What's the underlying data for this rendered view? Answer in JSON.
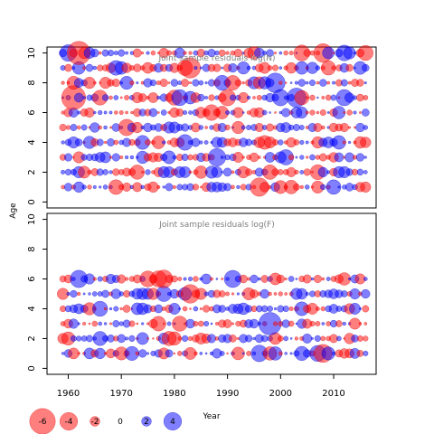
{
  "chart_data": {
    "type": "bubble",
    "ylabel": "Age",
    "xlabel": "Year",
    "x_ticks": [
      1960,
      1970,
      1980,
      1990,
      2000,
      2010
    ],
    "y_ticks": [
      0,
      2,
      4,
      6,
      8,
      10
    ],
    "xlim": [
      1956,
      2018
    ],
    "ylim": [
      -0.4,
      10.4
    ],
    "colors": {
      "positive": "#0000ff",
      "negative": "#ff0000"
    },
    "panels": [
      {
        "title": "Joint sample residuals log(N)",
        "years": [
          1959,
          2016
        ],
        "ages": [
          1,
          10
        ]
      },
      {
        "title": "Joint sample residuals log(F)",
        "years": [
          1959,
          2016
        ],
        "ages": [
          1,
          6
        ]
      }
    ],
    "legend": {
      "values": [
        -6,
        -4,
        -2,
        0,
        2,
        4
      ],
      "labels": [
        "-6",
        "-4",
        "-2",
        "0",
        "2",
        "4"
      ]
    }
  }
}
